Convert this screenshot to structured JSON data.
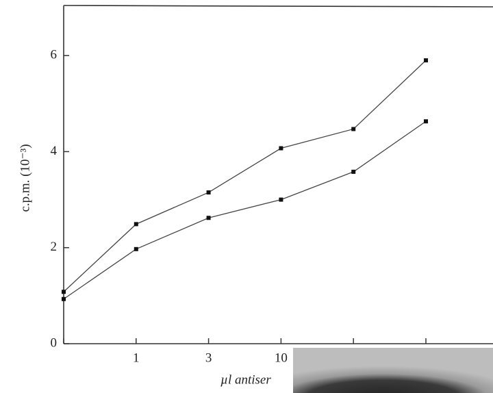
{
  "chart_data": {
    "type": "line",
    "y_label": "c.p.m. (10⁻³)",
    "x_label": "µl antiser",
    "categories": [
      null,
      "1",
      "3",
      "10",
      null,
      null
    ],
    "series": [
      {
        "color": "#444444",
        "values": [
          1.08,
          2.49,
          3.15,
          4.07,
          4.47,
          5.9
        ]
      },
      {
        "color": "#444444",
        "values": [
          0.93,
          1.97,
          2.62,
          3.0,
          3.58,
          4.63
        ]
      }
    ],
    "ylim": [
      0,
      7
    ],
    "yticks": [
      0,
      2,
      4,
      6
    ]
  }
}
